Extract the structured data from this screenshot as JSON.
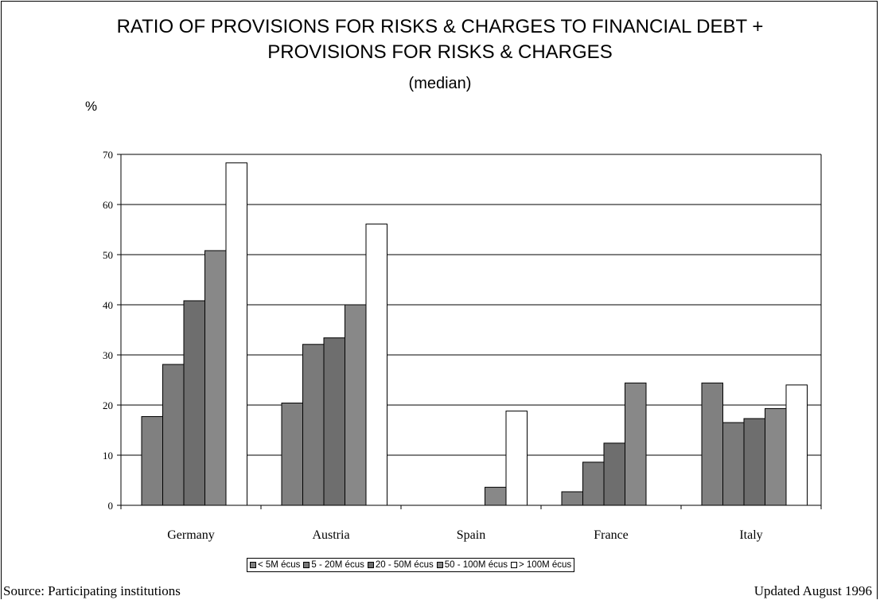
{
  "chart_data": {
    "type": "bar",
    "title_line1": "RATIO OF PROVISIONS FOR RISKS & CHARGES TO FINANCIAL DEBT +",
    "title_line2": "PROVISIONS FOR RISKS & CHARGES",
    "subtitle": "(median)",
    "ylabel": "%",
    "ylim": [
      0,
      70
    ],
    "yticks": [
      "0",
      "10",
      "20",
      "30",
      "40",
      "50",
      "60",
      "70"
    ],
    "categories": [
      "Germany",
      "Austria",
      "Spain",
      "France",
      "Italy"
    ],
    "series": [
      {
        "name": "< 5M écus",
        "values": [
          17.7,
          20.4,
          null,
          2.7,
          24.4
        ],
        "color": "#808080"
      },
      {
        "name": "5 - 20M écus",
        "values": [
          28.1,
          32.1,
          null,
          8.6,
          16.5
        ],
        "color": "#7a7a7a"
      },
      {
        "name": "20 - 50M écus",
        "values": [
          40.8,
          33.4,
          null,
          12.4,
          17.3
        ],
        "color": "#6e6e6e"
      },
      {
        "name": "50 - 100M écus",
        "values": [
          50.8,
          40.0,
          3.6,
          24.4,
          19.3
        ],
        "color": "#888888"
      },
      {
        "name": "> 100M écus",
        "values": [
          68.3,
          56.1,
          18.8,
          null,
          24.0
        ],
        "color": "#ffffff"
      }
    ],
    "grid": true,
    "legend_position": "bottom"
  },
  "footer": {
    "source": "Source: Participating institutions",
    "updated": "Updated August 1996"
  }
}
